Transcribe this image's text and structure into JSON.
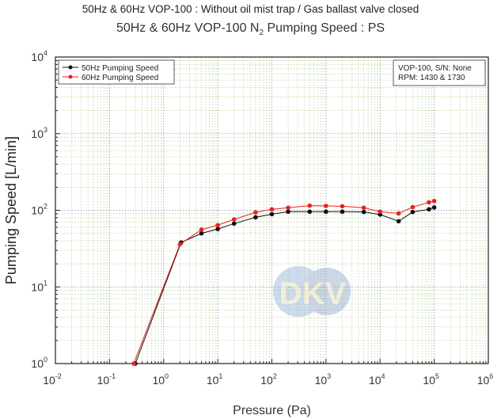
{
  "chart_data": {
    "type": "line",
    "title": "50Hz & 60Hz VOP-100 : Without oil mist trap / Gas ballast valve closed",
    "subtitle": {
      "prefix": "50Hz & 60Hz VOP-100 N",
      "sub": "2",
      "suffix": " Pumping Speed : PS"
    },
    "xlabel": "Pressure (Pa)",
    "ylabel": "Pumping Speed [L/min]",
    "xscale": "log",
    "yscale": "log",
    "xlim": [
      0.01,
      1000000
    ],
    "ylim": [
      1,
      10000
    ],
    "grid": true,
    "legend_position": "top-left",
    "x_ticks": [
      {
        "base": "10",
        "exp": "-2",
        "v": 0.01
      },
      {
        "base": "10",
        "exp": "-1",
        "v": 0.1
      },
      {
        "base": "10",
        "exp": "0",
        "v": 1
      },
      {
        "base": "10",
        "exp": "1",
        "v": 10
      },
      {
        "base": "10",
        "exp": "2",
        "v": 100
      },
      {
        "base": "10",
        "exp": "3",
        "v": 1000
      },
      {
        "base": "10",
        "exp": "4",
        "v": 10000
      },
      {
        "base": "10",
        "exp": "5",
        "v": 100000
      },
      {
        "base": "10",
        "exp": "6",
        "v": 1000000
      }
    ],
    "y_ticks": [
      {
        "base": "10",
        "exp": "0",
        "v": 1
      },
      {
        "base": "10",
        "exp": "1",
        "v": 10
      },
      {
        "base": "10",
        "exp": "2",
        "v": 100
      },
      {
        "base": "10",
        "exp": "3",
        "v": 1000
      },
      {
        "base": "10",
        "exp": "4",
        "v": 10000
      }
    ],
    "annotation": [
      "VOP-100, S/N: None",
      "RPM: 1430 & 1730"
    ],
    "watermark": "DKV",
    "series": [
      {
        "name": "50Hz Pumping Speed",
        "color": "#111111",
        "x": [
          0.3,
          2.1,
          5,
          10,
          20,
          50,
          100,
          200,
          500,
          1000,
          2000,
          5000,
          10000,
          22000,
          40000,
          80000,
          100000
        ],
        "y": [
          1.0,
          38,
          50,
          57,
          67,
          81,
          89,
          96,
          96,
          96,
          96,
          95,
          88,
          72,
          95,
          103,
          109
        ]
      },
      {
        "name": "60Hz Pumping Speed",
        "color": "#e8231e",
        "x": [
          0.28,
          2.0,
          5,
          10,
          20,
          50,
          100,
          200,
          500,
          1000,
          2000,
          5000,
          10000,
          22000,
          40000,
          80000,
          100000
        ],
        "y": [
          1.0,
          36,
          56,
          64,
          76,
          94,
          103,
          108,
          115,
          114,
          113,
          108,
          96,
          91,
          110,
          127,
          132
        ]
      }
    ]
  }
}
